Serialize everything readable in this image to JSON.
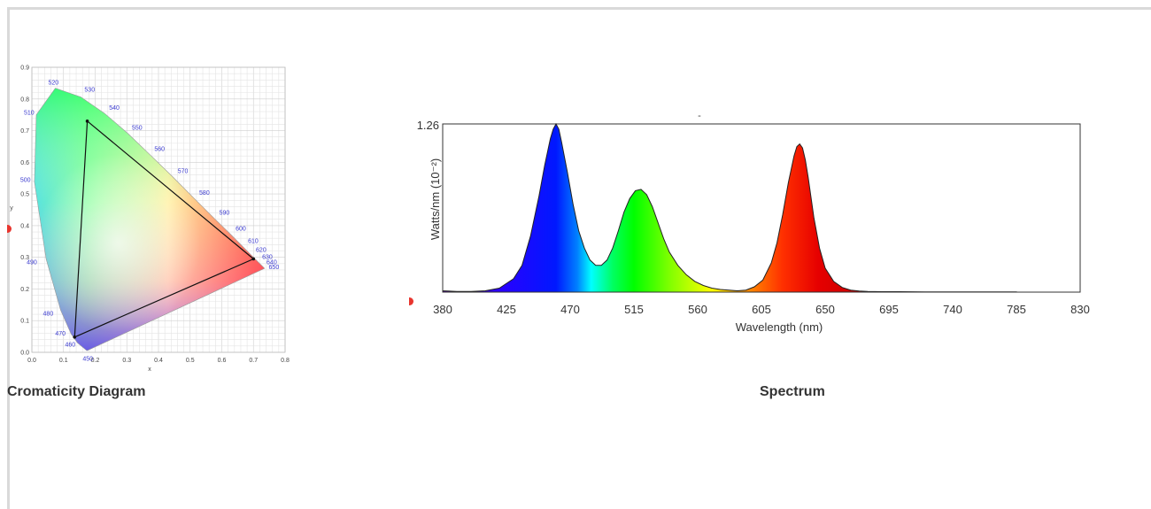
{
  "captions": {
    "cie": "Cromaticity Diagram",
    "spectrum": "Spectrum"
  },
  "chart_data": [
    {
      "type": "scatter",
      "title": "",
      "xlabel": "x",
      "ylabel": "y",
      "xlim": [
        0.0,
        0.8
      ],
      "ylim": [
        0.0,
        0.9
      ],
      "x_ticks": [
        "0.0",
        "0.1",
        "0.2",
        "0.3",
        "0.4",
        "0.5",
        "0.6",
        "0.7",
        "0.8"
      ],
      "y_ticks": [
        "0.0",
        "0.1",
        "0.2",
        "0.3",
        "0.4",
        "0.5",
        "0.6",
        "0.7",
        "0.8",
        "0.9"
      ],
      "grid": true,
      "locus_labels": [
        {
          "label": "450",
          "x": 0.166,
          "y": -0.01
        },
        {
          "label": "460",
          "x": 0.144,
          "y": 0.03
        },
        {
          "label": "470",
          "x": 0.124,
          "y": 0.058
        },
        {
          "label": "480",
          "x": 0.091,
          "y": 0.133
        },
        {
          "label": "490",
          "x": 0.045,
          "y": 0.295
        },
        {
          "label": "500",
          "x": 0.008,
          "y": 0.538
        },
        {
          "label": "510",
          "x": 0.014,
          "y": 0.75
        },
        {
          "label": "520",
          "x": 0.074,
          "y": 0.834
        },
        {
          "label": "530",
          "x": 0.155,
          "y": 0.806
        },
        {
          "label": "540",
          "x": 0.23,
          "y": 0.754
        },
        {
          "label": "550",
          "x": 0.302,
          "y": 0.692
        },
        {
          "label": "560",
          "x": 0.373,
          "y": 0.624
        },
        {
          "label": "570",
          "x": 0.444,
          "y": 0.555
        },
        {
          "label": "580",
          "x": 0.512,
          "y": 0.487
        },
        {
          "label": "590",
          "x": 0.575,
          "y": 0.424
        },
        {
          "label": "600",
          "x": 0.627,
          "y": 0.373
        },
        {
          "label": "610",
          "x": 0.666,
          "y": 0.334
        },
        {
          "label": "620",
          "x": 0.691,
          "y": 0.309
        },
        {
          "label": "630",
          "x": 0.708,
          "y": 0.292
        },
        {
          "label": "640",
          "x": 0.719,
          "y": 0.281
        },
        {
          "label": "650",
          "x": 0.726,
          "y": 0.274
        }
      ],
      "gamut_triangle": [
        {
          "x": 0.175,
          "y": 0.73
        },
        {
          "x": 0.7,
          "y": 0.295
        },
        {
          "x": 0.135,
          "y": 0.048
        }
      ]
    },
    {
      "type": "area",
      "title": "-",
      "xlabel": "Wavelength (nm)",
      "ylabel": "Watts/nm (10⁻²)",
      "xlim": [
        380,
        830
      ],
      "ylim": [
        0,
        1.26
      ],
      "x_ticks": [
        "380",
        "425",
        "470",
        "515",
        "560",
        "605",
        "650",
        "695",
        "740",
        "785",
        "830"
      ],
      "y_ticks": [
        "1.26"
      ],
      "series": [
        {
          "x": [
            380,
            390,
            400,
            410,
            420,
            430,
            436,
            442,
            448,
            452,
            456,
            458,
            460,
            462,
            464,
            468,
            472,
            476,
            480,
            484,
            488,
            492,
            496,
            500,
            504,
            508,
            512,
            516,
            520,
            524,
            528,
            532,
            536,
            540,
            546,
            552,
            558,
            564,
            570,
            576,
            582,
            588,
            594,
            600,
            606,
            612,
            616,
            620,
            624,
            628,
            630,
            632,
            634,
            636,
            638,
            640,
            642,
            646,
            650,
            656,
            662,
            668,
            674,
            680,
            690,
            700,
            720,
            760,
            785
          ],
          "y": [
            0.01,
            0.005,
            0.005,
            0.01,
            0.03,
            0.1,
            0.2,
            0.42,
            0.72,
            0.95,
            1.15,
            1.22,
            1.26,
            1.22,
            1.12,
            0.9,
            0.66,
            0.46,
            0.33,
            0.24,
            0.2,
            0.2,
            0.24,
            0.33,
            0.46,
            0.6,
            0.7,
            0.76,
            0.77,
            0.73,
            0.64,
            0.52,
            0.4,
            0.3,
            0.2,
            0.13,
            0.08,
            0.05,
            0.03,
            0.02,
            0.015,
            0.01,
            0.015,
            0.04,
            0.09,
            0.22,
            0.37,
            0.58,
            0.82,
            1.02,
            1.09,
            1.11,
            1.08,
            0.99,
            0.86,
            0.71,
            0.56,
            0.33,
            0.18,
            0.08,
            0.035,
            0.015,
            0.008,
            0.005,
            0.003,
            0.003,
            0.002,
            0.002,
            0.002
          ]
        }
      ]
    }
  ]
}
